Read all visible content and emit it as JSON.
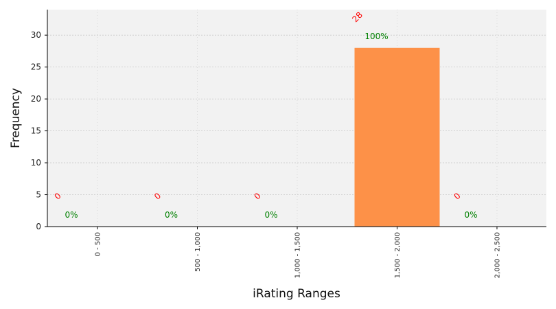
{
  "chart_data": {
    "type": "bar",
    "categories": [
      "0 - 500",
      "500 - 1,000",
      "1,000 - 1,500",
      "1,500 - 2,000",
      "2,000 - 2,500"
    ],
    "values": [
      0,
      0,
      0,
      28,
      0
    ],
    "count_labels": [
      "0",
      "0",
      "0",
      "28",
      "0"
    ],
    "percent_labels": [
      "0%",
      "0%",
      "0%",
      "100%",
      "0%"
    ],
    "title": "",
    "xlabel": "iRating Ranges",
    "ylabel": "Frequency",
    "ylim": [
      0,
      34
    ],
    "yticks": [
      0,
      5,
      10,
      15,
      20,
      25,
      30
    ],
    "grid": true,
    "colors": {
      "bar": "#fd9148",
      "plot_background": "#f2f2f2",
      "count_label": "#ff0000",
      "percent_label": "#008000",
      "grid": "#c8c8c8"
    }
  }
}
